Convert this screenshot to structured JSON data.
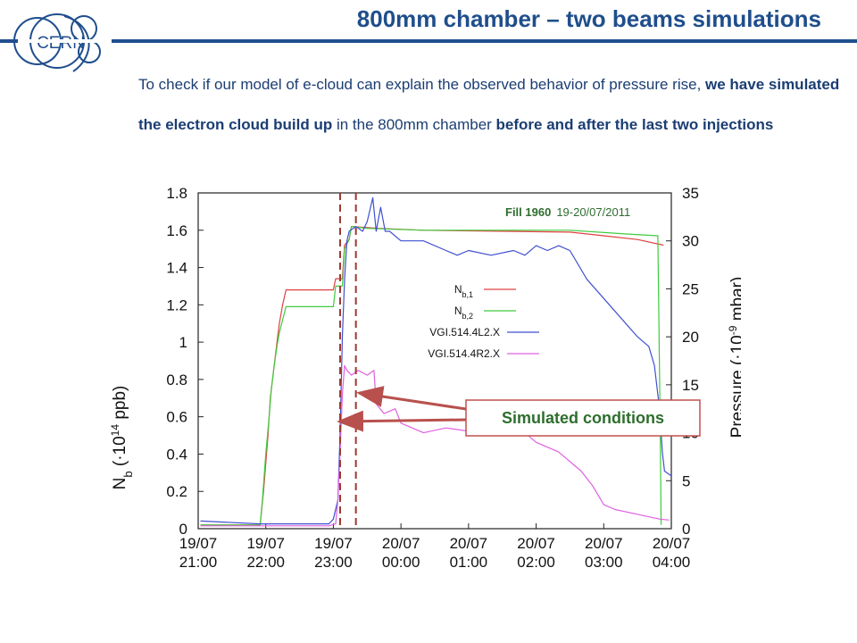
{
  "header": {
    "title": "800mm chamber – two beams simulations",
    "logo_text": "CERN"
  },
  "intro": {
    "parts": [
      {
        "text": "To check if our model of e-cloud can explain the observed behavior of pressure rise, ",
        "bold": false
      },
      {
        "text": "we have simulated the electron cloud build up",
        "bold": true
      },
      {
        "text": " in the 800mm chamber ",
        "bold": false
      },
      {
        "text": "before and after the last two injections",
        "bold": true
      }
    ]
  },
  "annotation": {
    "fill_label": "Fill 1960",
    "fill_date": "19-20/07/2011",
    "callout_label": "Simulated conditions"
  },
  "colors": {
    "header": "#1f4e8c",
    "text": "#1b3d73",
    "fill_label": "#2e6e2e",
    "callout_border": "#c0504d",
    "callout_text": "#2e6e2e",
    "arrow": "#b8504d",
    "dashed_lines": "#9c3a30"
  },
  "chart_data": {
    "type": "line",
    "x_axis": {
      "ticks": [
        {
          "value": 0,
          "line1": "19/07",
          "line2": "21:00"
        },
        {
          "value": 60,
          "line1": "19/07",
          "line2": "22:00"
        },
        {
          "value": 120,
          "line1": "19/07",
          "line2": "23:00"
        },
        {
          "value": 180,
          "line1": "20/07",
          "line2": "00:00"
        },
        {
          "value": 240,
          "line1": "20/07",
          "line2": "01:00"
        },
        {
          "value": 300,
          "line1": "20/07",
          "line2": "02:00"
        },
        {
          "value": 360,
          "line1": "20/07",
          "line2": "03:00"
        },
        {
          "value": 420,
          "line1": "20/07",
          "line2": "04:00"
        }
      ],
      "range": [
        0,
        420
      ]
    },
    "y_left": {
      "label_main": "N",
      "label_sub": "b",
      "label_paren": " (·10",
      "label_exp": "14",
      "label_unit": " ppb)",
      "range": [
        0,
        1.8
      ],
      "ticks": [
        "0",
        "0.2",
        "0.4",
        "0.6",
        "0.8",
        "1",
        "1.2",
        "1.4",
        "1.6",
        "1.8"
      ]
    },
    "y_right": {
      "label_main": "Pressure (·10",
      "label_exp": "-9",
      "label_unit": " mbar)",
      "range": [
        0,
        35
      ],
      "ticks": [
        "0",
        "5",
        "10",
        "15",
        "20",
        "25",
        "30",
        "35"
      ]
    },
    "series": [
      {
        "name_main": "N",
        "name_sub": "b,1",
        "axis": "left",
        "color": "#e04040",
        "points": [
          [
            2,
            0.02
          ],
          [
            55,
            0.02
          ],
          [
            58,
            0.2
          ],
          [
            62,
            0.5
          ],
          [
            64,
            0.7
          ],
          [
            66,
            0.8
          ],
          [
            68,
            0.9
          ],
          [
            70,
            1.0
          ],
          [
            72,
            1.1
          ],
          [
            75,
            1.2
          ],
          [
            78,
            1.28
          ],
          [
            120,
            1.28
          ],
          [
            122,
            1.34
          ],
          [
            128,
            1.34
          ],
          [
            130,
            1.52
          ],
          [
            134,
            1.55
          ],
          [
            136,
            1.62
          ],
          [
            160,
            1.61
          ],
          [
            200,
            1.6
          ],
          [
            330,
            1.59
          ],
          [
            360,
            1.57
          ],
          [
            390,
            1.55
          ],
          [
            413,
            1.52
          ]
        ]
      },
      {
        "name_main": "N",
        "name_sub": "b,2",
        "axis": "left",
        "color": "#3ecb3e",
        "points": [
          [
            2,
            0.02
          ],
          [
            55,
            0.02
          ],
          [
            57,
            0.15
          ],
          [
            60,
            0.4
          ],
          [
            63,
            0.6
          ],
          [
            65,
            0.75
          ],
          [
            67,
            0.85
          ],
          [
            70,
            0.98
          ],
          [
            72,
            1.05
          ],
          [
            75,
            1.12
          ],
          [
            78,
            1.19
          ],
          [
            120,
            1.19
          ],
          [
            122,
            1.3
          ],
          [
            128,
            1.3
          ],
          [
            130,
            1.5
          ],
          [
            134,
            1.55
          ],
          [
            136,
            1.62
          ],
          [
            150,
            1.61
          ],
          [
            200,
            1.6
          ],
          [
            330,
            1.6
          ],
          [
            380,
            1.58
          ],
          [
            408,
            1.57
          ],
          [
            410,
            0.6
          ],
          [
            411,
            0.02
          ]
        ]
      },
      {
        "name_main": "VGI.514.4L2.X",
        "name_sub": "",
        "axis": "right",
        "color": "#4050d0",
        "points": [
          [
            2,
            0.8
          ],
          [
            55,
            0.5
          ],
          [
            116,
            0.5
          ],
          [
            120,
            1.0
          ],
          [
            124,
            3
          ],
          [
            126,
            10
          ],
          [
            128,
            20
          ],
          [
            130,
            26
          ],
          [
            132,
            30
          ],
          [
            134,
            31
          ],
          [
            140,
            31.5
          ],
          [
            146,
            31
          ],
          [
            150,
            32
          ],
          [
            155,
            34.5
          ],
          [
            158,
            31
          ],
          [
            162,
            33.5
          ],
          [
            166,
            31
          ],
          [
            170,
            31
          ],
          [
            180,
            30
          ],
          [
            200,
            30
          ],
          [
            220,
            29
          ],
          [
            230,
            28.5
          ],
          [
            240,
            29
          ],
          [
            260,
            28.5
          ],
          [
            280,
            29
          ],
          [
            290,
            28.5
          ],
          [
            300,
            29.5
          ],
          [
            310,
            29
          ],
          [
            320,
            29.5
          ],
          [
            330,
            29
          ],
          [
            345,
            26
          ],
          [
            360,
            24
          ],
          [
            375,
            22
          ],
          [
            390,
            20
          ],
          [
            400,
            19
          ],
          [
            405,
            17
          ],
          [
            410,
            12
          ],
          [
            412,
            8
          ],
          [
            414,
            6
          ],
          [
            420,
            5.5
          ]
        ]
      },
      {
        "name_main": "VGI.514.4R2.X",
        "name_sub": "",
        "axis": "right",
        "color": "#e060e0",
        "points": [
          [
            2,
            0.3
          ],
          [
            116,
            0.3
          ],
          [
            122,
            0.5
          ],
          [
            124,
            3
          ],
          [
            126,
            8
          ],
          [
            128,
            14
          ],
          [
            130,
            17
          ],
          [
            132,
            16.5
          ],
          [
            136,
            16
          ],
          [
            142,
            16.5
          ],
          [
            150,
            16
          ],
          [
            156,
            16.5
          ],
          [
            158,
            13
          ],
          [
            165,
            12
          ],
          [
            175,
            12.5
          ],
          [
            180,
            11
          ],
          [
            190,
            10.5
          ],
          [
            200,
            10
          ],
          [
            220,
            10.5
          ],
          [
            250,
            10
          ],
          [
            270,
            10
          ],
          [
            290,
            10
          ],
          [
            300,
            9
          ],
          [
            320,
            8
          ],
          [
            340,
            6
          ],
          [
            350,
            4.5
          ],
          [
            360,
            2.5
          ],
          [
            370,
            2
          ],
          [
            390,
            1.5
          ],
          [
            410,
            1.0
          ],
          [
            418,
            0.9
          ]
        ]
      }
    ],
    "markers": [
      126,
      140
    ],
    "grid": false,
    "legend_placement": "right-middle"
  }
}
